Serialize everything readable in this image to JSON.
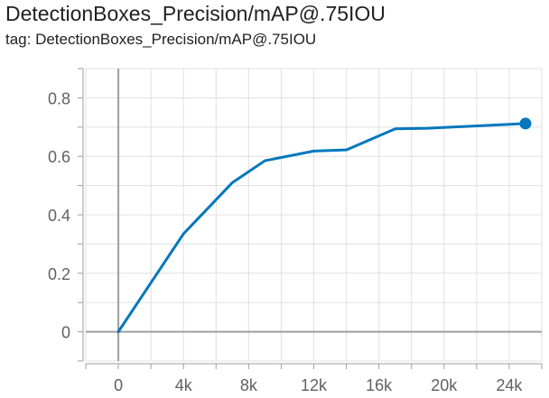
{
  "header": {
    "title": "DetectionBoxes_Precision/mAP@.75IOU",
    "tag": "tag: DetectionBoxes_Precision/mAP@.75IOU"
  },
  "chart_data": {
    "type": "line",
    "title": "DetectionBoxes_Precision/mAP@.75IOU",
    "xlabel": "",
    "ylabel": "",
    "x_ticks": [
      0,
      4000,
      8000,
      12000,
      16000,
      20000,
      24000
    ],
    "x_tick_labels": [
      "0",
      "4k",
      "8k",
      "12k",
      "16k",
      "20k",
      "24k"
    ],
    "y_ticks": [
      0,
      0.2,
      0.4,
      0.6,
      0.8
    ],
    "y_tick_labels": [
      "0",
      "0.2",
      "0.4",
      "0.6",
      "0.8"
    ],
    "xlim": [
      -2000,
      26000
    ],
    "ylim": [
      -0.1,
      0.9
    ],
    "grid": true,
    "line_color": "#0277bd",
    "series": [
      {
        "x": [
          0,
          4000,
          7000,
          9000,
          12000,
          14000,
          17000,
          19000,
          25000
        ],
        "y": [
          0.0,
          0.335,
          0.51,
          0.585,
          0.618,
          0.622,
          0.694,
          0.696,
          0.712
        ]
      }
    ]
  }
}
